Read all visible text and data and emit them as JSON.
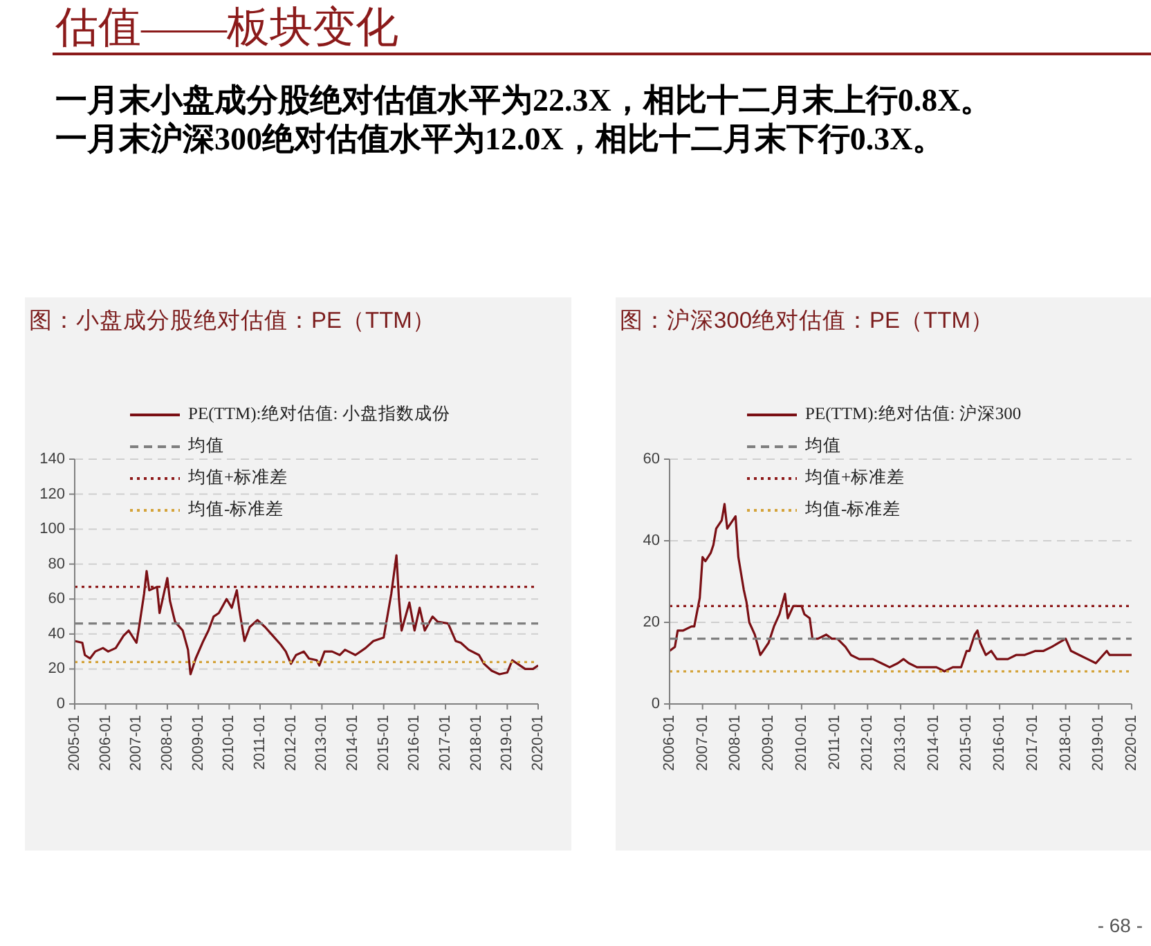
{
  "chart_data": [
    {
      "type": "other",
      "title": "估值——板块变化",
      "annotations": [
        "一月末小盘成分股绝对估值水平为22.3X，相比十二月末上行0.8X。",
        "一月末沪深300绝对估值水平为12.0X，相比十二月末下行0.3X。",
        "- 68 -"
      ]
    },
    {
      "type": "line",
      "title": "图：小盘成分股绝对估值：PE（TTM）",
      "grid": "y",
      "legend": "top",
      "xlim": [
        "2005-01",
        "2020-01"
      ],
      "xticks": [
        "2005-01",
        "2006-01",
        "2007-01",
        "2008-01",
        "2009-01",
        "2010-01",
        "2011-01",
        "2012-01",
        "2013-01",
        "2014-01",
        "2015-01",
        "2016-01",
        "2017-01",
        "2018-01",
        "2019-01",
        "2020-01"
      ],
      "ylim": [
        0,
        140
      ],
      "yticks": [
        0,
        20,
        40,
        60,
        80,
        100,
        120,
        140
      ],
      "series": [
        {
          "name": "PE(TTM):绝对估值: 小盘指数成份",
          "color": "#7a0f14",
          "line_style": "solid",
          "x": [
            "2005-01",
            "2005-04",
            "2005-05",
            "2005-07",
            "2005-09",
            "2005-12",
            "2006-02",
            "2006-05",
            "2006-08",
            "2006-10",
            "2007-01",
            "2007-02",
            "2007-04",
            "2007-05",
            "2007-06",
            "2007-09",
            "2007-10",
            "2008-01",
            "2008-02",
            "2008-04",
            "2008-07",
            "2008-09",
            "2008-10",
            "2008-12",
            "2009-03",
            "2009-05",
            "2009-07",
            "2009-09",
            "2009-12",
            "2010-02",
            "2010-04",
            "2010-05",
            "2010-07",
            "2010-09",
            "2010-12",
            "2011-03",
            "2011-06",
            "2011-09",
            "2011-11",
            "2012-01",
            "2012-03",
            "2012-06",
            "2012-08",
            "2012-11",
            "2012-12",
            "2013-02",
            "2013-05",
            "2013-08",
            "2013-10",
            "2014-02",
            "2014-06",
            "2014-09",
            "2015-01",
            "2015-04",
            "2015-06",
            "2015-07",
            "2015-08",
            "2015-11",
            "2016-01",
            "2016-03",
            "2016-05",
            "2016-08",
            "2016-10",
            "2017-02",
            "2017-05",
            "2017-07",
            "2017-10",
            "2018-02",
            "2018-04",
            "2018-07",
            "2018-10",
            "2019-01",
            "2019-03",
            "2019-06",
            "2019-08",
            "2019-11",
            "2020-01"
          ],
          "values": [
            36,
            35,
            28,
            26,
            30,
            32,
            30,
            32,
            39,
            42,
            35,
            44,
            63,
            76,
            65,
            67,
            52,
            72,
            59,
            47,
            42,
            31,
            17,
            26,
            36,
            42,
            50,
            52,
            60,
            55,
            65,
            54,
            36,
            44,
            48,
            44,
            39,
            34,
            30,
            23,
            28,
            30,
            26,
            25,
            22,
            30,
            30,
            28,
            31,
            28,
            32,
            36,
            38,
            63,
            85,
            60,
            42,
            58,
            42,
            55,
            42,
            50,
            47,
            46,
            36,
            35,
            31,
            28,
            23,
            19,
            17,
            18,
            25,
            22,
            20,
            20,
            22
          ]
        },
        {
          "name": "均值",
          "color": "#7f7f7f",
          "line_style": "dashed",
          "x": [
            "2005-01",
            "2020-01"
          ],
          "values": [
            46,
            46
          ]
        },
        {
          "name": "均值+标准差",
          "color": "#8e1b1b",
          "line_style": "dotted",
          "x": [
            "2005-01",
            "2020-01"
          ],
          "values": [
            67,
            67
          ]
        },
        {
          "name": "均值-标准差",
          "color": "#d4a33a",
          "line_style": "dotted",
          "x": [
            "2005-01",
            "2020-01"
          ],
          "values": [
            24,
            24
          ]
        }
      ]
    },
    {
      "type": "line",
      "title": "图：沪深300绝对估值：PE（TTM）",
      "grid": "y",
      "legend": "top",
      "xlim": [
        "2006-01",
        "2020-01"
      ],
      "xticks": [
        "2006-01",
        "2007-01",
        "2008-01",
        "2009-01",
        "2010-01",
        "2011-01",
        "2012-01",
        "2013-01",
        "2014-01",
        "2015-01",
        "2016-01",
        "2017-01",
        "2018-01",
        "2019-01",
        "2020-01"
      ],
      "ylim": [
        0,
        60
      ],
      "yticks": [
        0,
        20,
        40,
        60
      ],
      "series": [
        {
          "name": "PE(TTM):绝对估值: 沪深300",
          "color": "#7a0f14",
          "line_style": "solid",
          "x": [
            "2006-01",
            "2006-03",
            "2006-04",
            "2006-06",
            "2006-09",
            "2006-10",
            "2006-12",
            "2007-01",
            "2007-02",
            "2007-04",
            "2007-05",
            "2007-06",
            "2007-08",
            "2007-09",
            "2007-10",
            "2007-11",
            "2008-01",
            "2008-02",
            "2008-04",
            "2008-05",
            "2008-06",
            "2008-08",
            "2008-10",
            "2008-11",
            "2009-01",
            "2009-03",
            "2009-05",
            "2009-07",
            "2009-08",
            "2009-10",
            "2010-01",
            "2010-02",
            "2010-04",
            "2010-05",
            "2010-07",
            "2010-10",
            "2010-12",
            "2011-02",
            "2011-05",
            "2011-07",
            "2011-10",
            "2012-01",
            "2012-03",
            "2012-06",
            "2012-09",
            "2012-12",
            "2013-02",
            "2013-04",
            "2013-07",
            "2013-10",
            "2014-02",
            "2014-05",
            "2014-08",
            "2014-11",
            "2015-01",
            "2015-02",
            "2015-04",
            "2015-05",
            "2015-06",
            "2015-08",
            "2015-10",
            "2015-12",
            "2016-04",
            "2016-07",
            "2016-10",
            "2017-02",
            "2017-05",
            "2017-08",
            "2018-01",
            "2018-03",
            "2018-06",
            "2018-09",
            "2018-12",
            "2019-04",
            "2019-05",
            "2019-08",
            "2019-10",
            "2020-01"
          ],
          "values": [
            13,
            14,
            18,
            18,
            19,
            19,
            26,
            36,
            35,
            37,
            39,
            43,
            45,
            49,
            43,
            44,
            46,
            36,
            28,
            25,
            20,
            17,
            12,
            13,
            15,
            19,
            22,
            27,
            21,
            24,
            24,
            22,
            21,
            16,
            16,
            17,
            16,
            16,
            14,
            12,
            11,
            11,
            11,
            10,
            9,
            10,
            11,
            10,
            9,
            9,
            9,
            8,
            9,
            9,
            13,
            13,
            17,
            18,
            15,
            12,
            13,
            11,
            11,
            12,
            12,
            13,
            13,
            14,
            16,
            13,
            12,
            11,
            10,
            13,
            12,
            12,
            12,
            12
          ]
        },
        {
          "name": "均值",
          "color": "#7f7f7f",
          "line_style": "dashed",
          "x": [
            "2006-01",
            "2020-01"
          ],
          "values": [
            16,
            16
          ]
        },
        {
          "name": "均值+标准差",
          "color": "#8e1b1b",
          "line_style": "dotted",
          "x": [
            "2006-01",
            "2020-01"
          ],
          "values": [
            24,
            24
          ]
        },
        {
          "name": "均值-标准差",
          "color": "#d4a33a",
          "line_style": "dotted",
          "x": [
            "2006-01",
            "2020-01"
          ],
          "values": [
            8,
            8
          ]
        }
      ]
    }
  ]
}
